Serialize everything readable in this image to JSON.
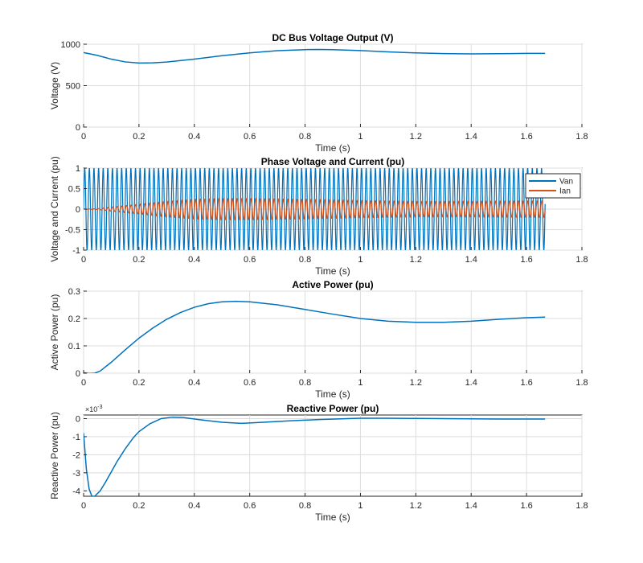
{
  "colors": {
    "series1": "#0072BD",
    "series2": "#D95319"
  },
  "chart_data": [
    {
      "type": "line",
      "title": "DC Bus Voltage Output (V)",
      "xlabel": "Time (s)",
      "ylabel": "Voltage (V)",
      "xlim": [
        0,
        1.8
      ],
      "ylim": [
        0,
        1000
      ],
      "xticks": [
        "0",
        "0.2",
        "0.4",
        "0.6",
        "0.8",
        "1",
        "1.2",
        "1.4",
        "1.6",
        "1.8"
      ],
      "yticks": [
        "0",
        "500",
        "1000"
      ],
      "grid": true,
      "series": [
        {
          "x": [
            0,
            0.05,
            0.1,
            0.15,
            0.2,
            0.25,
            0.3,
            0.4,
            0.5,
            0.6,
            0.7,
            0.8,
            0.85,
            0.9,
            1.0,
            1.1,
            1.2,
            1.3,
            1.4,
            1.5,
            1.6,
            1.667
          ],
          "values": [
            900,
            865,
            820,
            787,
            773,
            775,
            785,
            820,
            862,
            896,
            922,
            935,
            937,
            935,
            923,
            908,
            895,
            887,
            884,
            886,
            889,
            890
          ]
        }
      ]
    },
    {
      "type": "line",
      "title": "Phase Voltage and Current (pu)",
      "xlabel": "Time (s)",
      "ylabel": "Voltage and Current (pu)",
      "xlim": [
        0,
        1.8
      ],
      "ylim": [
        -1,
        1
      ],
      "xticks": [
        "0",
        "0.2",
        "0.4",
        "0.6",
        "0.8",
        "1",
        "1.2",
        "1.4",
        "1.6",
        "1.8"
      ],
      "yticks": [
        "-1",
        "-0.5",
        "0",
        "0.5",
        "1"
      ],
      "grid": true,
      "legend_position": "top-right",
      "series": [
        {
          "name": "Van",
          "kind": "sinusoid",
          "frequency_hz": 60,
          "x_end": 1.667,
          "amplitude_x": [
            0,
            1.667
          ],
          "amplitude": [
            1,
            1
          ]
        },
        {
          "name": "Ian",
          "kind": "sinusoid",
          "frequency_hz": 60,
          "x_end": 1.667,
          "phase_lag_rad": 0.3,
          "amplitude_x": [
            0,
            0.05,
            0.1,
            0.2,
            0.3,
            0.4,
            0.5,
            0.6,
            0.8,
            1.0,
            1.2,
            1.4,
            1.6,
            1.667
          ],
          "amplitude": [
            0,
            0.01,
            0.05,
            0.12,
            0.19,
            0.24,
            0.26,
            0.26,
            0.24,
            0.21,
            0.19,
            0.19,
            0.2,
            0.2
          ]
        }
      ]
    },
    {
      "type": "line",
      "title": "Active Power (pu)",
      "xlabel": "Time (s)",
      "ylabel": "Active Power (pu)",
      "xlim": [
        0,
        1.8
      ],
      "ylim": [
        0,
        0.3
      ],
      "xticks": [
        "0",
        "0.2",
        "0.4",
        "0.6",
        "0.8",
        "1",
        "1.2",
        "1.4",
        "1.6",
        "1.8"
      ],
      "yticks": [
        "0",
        "0.1",
        "0.2",
        "0.3"
      ],
      "grid": true,
      "series": [
        {
          "x": [
            0,
            0.02,
            0.04,
            0.06,
            0.1,
            0.15,
            0.2,
            0.25,
            0.3,
            0.35,
            0.4,
            0.45,
            0.5,
            0.55,
            0.6,
            0.7,
            0.8,
            0.9,
            1.0,
            1.1,
            1.2,
            1.3,
            1.4,
            1.5,
            1.6,
            1.667
          ],
          "values": [
            0.002,
            -0.001,
            0.0,
            0.008,
            0.04,
            0.085,
            0.128,
            0.165,
            0.197,
            0.222,
            0.241,
            0.254,
            0.261,
            0.263,
            0.261,
            0.25,
            0.233,
            0.216,
            0.2,
            0.19,
            0.186,
            0.186,
            0.19,
            0.197,
            0.203,
            0.205
          ]
        }
      ]
    },
    {
      "type": "line",
      "title": "Reactive Power (pu)",
      "xlabel": "Time (s)",
      "ylabel": "Reactive Power (pu)",
      "xlim": [
        0,
        1.8
      ],
      "ylim": [
        -4.3,
        0.2
      ],
      "y_multiplier": "×10",
      "y_exponent": "-3",
      "xticks": [
        "0",
        "0.2",
        "0.4",
        "0.6",
        "0.8",
        "1",
        "1.2",
        "1.4",
        "1.6",
        "1.8"
      ],
      "yticks": [
        "-4",
        "-3",
        "-2",
        "-1",
        "0"
      ],
      "grid": true,
      "series": [
        {
          "x": [
            0,
            0.01,
            0.02,
            0.03,
            0.04,
            0.06,
            0.08,
            0.1,
            0.12,
            0.15,
            0.18,
            0.2,
            0.24,
            0.28,
            0.32,
            0.36,
            0.42,
            0.5,
            0.57,
            0.65,
            0.75,
            0.85,
            1.0,
            1.1,
            1.2,
            1.3,
            1.4,
            1.5,
            1.6,
            1.667
          ],
          "values": [
            -0.8,
            -2.8,
            -3.9,
            -4.3,
            -4.3,
            -4.0,
            -3.5,
            -2.95,
            -2.4,
            -1.68,
            -1.05,
            -0.72,
            -0.28,
            0.0,
            0.08,
            0.06,
            -0.06,
            -0.2,
            -0.26,
            -0.2,
            -0.12,
            -0.05,
            0.02,
            0.02,
            0.01,
            0.0,
            -0.01,
            -0.02,
            -0.02,
            -0.02
          ]
        }
      ]
    }
  ]
}
